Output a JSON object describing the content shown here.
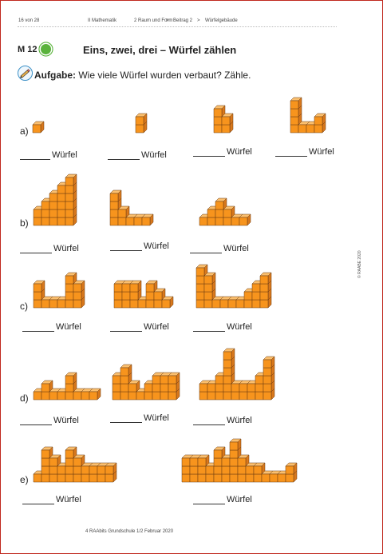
{
  "header": {
    "page": "16 von 28",
    "subject": "II Mathematik",
    "unit": "2 Raum und Form",
    "contribution": "Beitrag 2",
    "sep": ">",
    "topic": "Würfelgebäude"
  },
  "sheet": {
    "code": "M 12",
    "title": "Eins, zwei, drei – Würfel zählen",
    "task_label": "Aufgabe:",
    "task_text": "Wie viele Würfel wurden verbaut? Zähle."
  },
  "colors": {
    "cube_front": "#f7941d",
    "cube_top": "#fbbf6e",
    "cube_side": "#d8781c",
    "stroke": "#6a3a10",
    "frame": "#c0281e",
    "badge": "#5ab33c"
  },
  "row_labels": [
    "a)",
    "b)",
    "c)",
    "d)",
    "e)"
  ],
  "answer_word": "Würfel",
  "answer_word_a1": "Würfel",
  "copyright": "© RAABE 2020",
  "footer": "4 RAAbits Grundschule 1/2 Februar 2020",
  "answers": [
    {
      "label": "______Würfel",
      "row": 0
    },
    {
      "label": "______ Würfel",
      "row": 0
    },
    {
      "label": "_______ Würfel",
      "row": 0
    },
    {
      "label": "________ Würfel",
      "row": 0
    }
  ]
}
